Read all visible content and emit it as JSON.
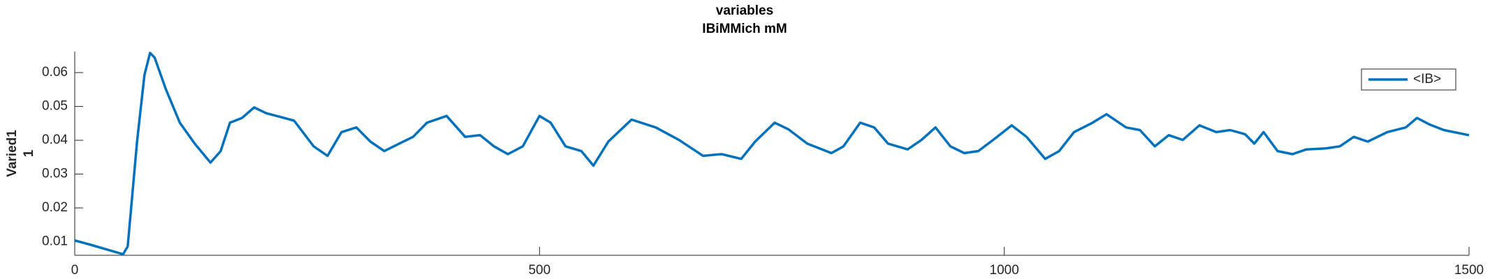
{
  "chart_data": {
    "type": "line",
    "title": "variables",
    "subtitle": "IBiMMich mM",
    "ylabel": [
      "Varied1",
      "1"
    ],
    "x": [
      0,
      16,
      52,
      57,
      67,
      75,
      81,
      86,
      98,
      113,
      129,
      146,
      157,
      167,
      180,
      193,
      206,
      221,
      236,
      257,
      272,
      287,
      303,
      318,
      333,
      349,
      364,
      379,
      400,
      420,
      436,
      451,
      466,
      482,
      500,
      512,
      528,
      545,
      558,
      574,
      599,
      625,
      650,
      676,
      696,
      717,
      732,
      753,
      768,
      788,
      814,
      827,
      845,
      860,
      875,
      896,
      911,
      926,
      942,
      957,
      972,
      988,
      1008,
      1024,
      1044,
      1059,
      1075,
      1095,
      1110,
      1131,
      1146,
      1162,
      1177,
      1192,
      1210,
      1228,
      1243,
      1259,
      1269,
      1279,
      1294,
      1310,
      1325,
      1346,
      1361,
      1376,
      1391,
      1412,
      1432,
      1444,
      1458,
      1473,
      1500
    ],
    "series": [
      {
        "name": "<IB>",
        "color": "#0072bd",
        "values": [
          0.0104,
          0.0092,
          0.0063,
          0.0086,
          0.0396,
          0.0593,
          0.0658,
          0.0644,
          0.0551,
          0.0452,
          0.039,
          0.0334,
          0.0368,
          0.0452,
          0.0466,
          0.0497,
          0.048,
          0.0469,
          0.0458,
          0.0382,
          0.0354,
          0.0424,
          0.0438,
          0.0396,
          0.0368,
          0.039,
          0.041,
          0.0452,
          0.0472,
          0.041,
          0.0415,
          0.0382,
          0.0359,
          0.0382,
          0.0472,
          0.0452,
          0.0382,
          0.0368,
          0.0325,
          0.0396,
          0.0461,
          0.0438,
          0.0401,
          0.0354,
          0.0359,
          0.0345,
          0.0396,
          0.0452,
          0.0432,
          0.039,
          0.0362,
          0.0382,
          0.0452,
          0.0438,
          0.039,
          0.0373,
          0.0401,
          0.0438,
          0.0382,
          0.0362,
          0.0368,
          0.0401,
          0.0444,
          0.041,
          0.0345,
          0.0368,
          0.0424,
          0.0452,
          0.0477,
          0.0438,
          0.043,
          0.0382,
          0.0415,
          0.0401,
          0.0444,
          0.0424,
          0.043,
          0.0418,
          0.039,
          0.0424,
          0.0368,
          0.0359,
          0.0373,
          0.0376,
          0.0382,
          0.041,
          0.0396,
          0.0424,
          0.0438,
          0.0466,
          0.0446,
          0.043,
          0.0415
        ]
      }
    ],
    "xlim": [
      0,
      1500
    ],
    "xticks": [
      0,
      500,
      1000,
      1500
    ],
    "ylim": [
      0.006,
      0.0662
    ],
    "yticks": [
      0.01,
      0.02,
      0.03,
      0.04,
      0.05,
      0.06
    ],
    "grid": false,
    "legend": "northeast"
  }
}
